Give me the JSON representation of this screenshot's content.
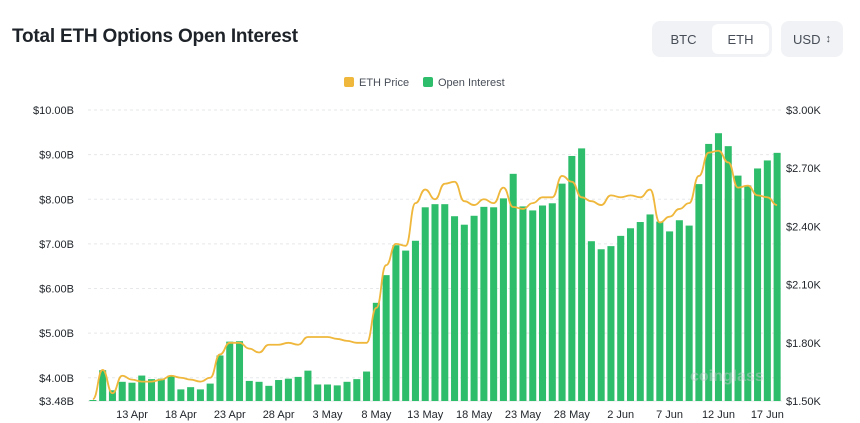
{
  "header": {
    "title": "Total ETH Options Open Interest",
    "asset_options": [
      "BTC",
      "ETH"
    ],
    "asset_selected": "ETH",
    "currency": "USD",
    "currency_icon": "chevron-up-down-icon"
  },
  "chart_data": {
    "type": "bar",
    "title": "Total ETH Options Open Interest",
    "legend_position": "top-center",
    "grid": "horizontal-dashed",
    "colors": {
      "open_interest": "#2ebd6b",
      "eth_price": "#efb73b"
    },
    "x_tick_labels": [
      "13 Apr",
      "18 Apr",
      "23 Apr",
      "28 Apr",
      "3 May",
      "8 May",
      "13 May",
      "18 May",
      "23 May",
      "28 May",
      "2 Jun",
      "7 Jun",
      "12 Jun",
      "17 Jun"
    ],
    "y_left": {
      "ticks": [
        3.48,
        4.0,
        5.0,
        6.0,
        7.0,
        8.0,
        9.0,
        10.0
      ],
      "tick_labels": [
        "$3.48B",
        "$4.00B",
        "$5.00B",
        "$6.00B",
        "$7.00B",
        "$8.00B",
        "$9.00B",
        "$10.00B"
      ],
      "range": [
        3.48,
        10.0
      ]
    },
    "y_right": {
      "ticks": [
        1.5,
        1.8,
        2.1,
        2.4,
        2.7,
        3.0
      ],
      "tick_labels": [
        "$1.50K",
        "$1.80K",
        "$2.10K",
        "$2.40K",
        "$2.70K",
        "$3.00K"
      ],
      "range": [
        1.5,
        3.0
      ]
    },
    "series": [
      {
        "name": "Open Interest",
        "axis": "left",
        "values": [
          3.47,
          4.17,
          3.72,
          3.91,
          3.89,
          4.05,
          3.97,
          3.98,
          4.05,
          3.74,
          3.79,
          3.74,
          3.87,
          4.5,
          4.81,
          4.82,
          3.93,
          3.91,
          3.82,
          3.95,
          3.98,
          4.02,
          4.16,
          3.85,
          3.85,
          3.83,
          3.91,
          3.97,
          4.14,
          5.68,
          6.3,
          6.97,
          6.85,
          7.07,
          7.82,
          7.89,
          7.89,
          7.62,
          7.43,
          7.63,
          7.83,
          7.82,
          8.02,
          8.57,
          7.84,
          7.75,
          7.86,
          7.91,
          8.35,
          8.97,
          9.14,
          7.06,
          6.88,
          6.95,
          7.18,
          7.35,
          7.49,
          7.66,
          7.5,
          7.28,
          7.53,
          7.41,
          8.34,
          9.24,
          9.48,
          9.19,
          8.53,
          8.31,
          8.69,
          8.87,
          9.04
        ]
      },
      {
        "name": "ETH Price",
        "axis": "right",
        "values": [
          1.51,
          1.66,
          1.54,
          1.63,
          1.61,
          1.6,
          1.6,
          1.61,
          1.63,
          1.62,
          1.61,
          1.6,
          1.62,
          1.74,
          1.8,
          1.8,
          1.77,
          1.75,
          1.79,
          1.79,
          1.8,
          1.79,
          1.83,
          1.83,
          1.83,
          1.82,
          1.81,
          1.8,
          1.8,
          1.98,
          2.2,
          2.31,
          2.3,
          2.52,
          2.59,
          2.54,
          2.62,
          2.63,
          2.53,
          2.51,
          2.54,
          2.52,
          2.6,
          2.5,
          2.49,
          2.52,
          2.55,
          2.55,
          2.66,
          2.63,
          2.55,
          2.53,
          2.51,
          2.56,
          2.55,
          2.56,
          2.55,
          2.59,
          2.42,
          2.45,
          2.49,
          2.52,
          2.66,
          2.78,
          2.79,
          2.73,
          2.6,
          2.61,
          2.56,
          2.55,
          2.51
        ]
      }
    ],
    "watermark": "coinglass"
  }
}
